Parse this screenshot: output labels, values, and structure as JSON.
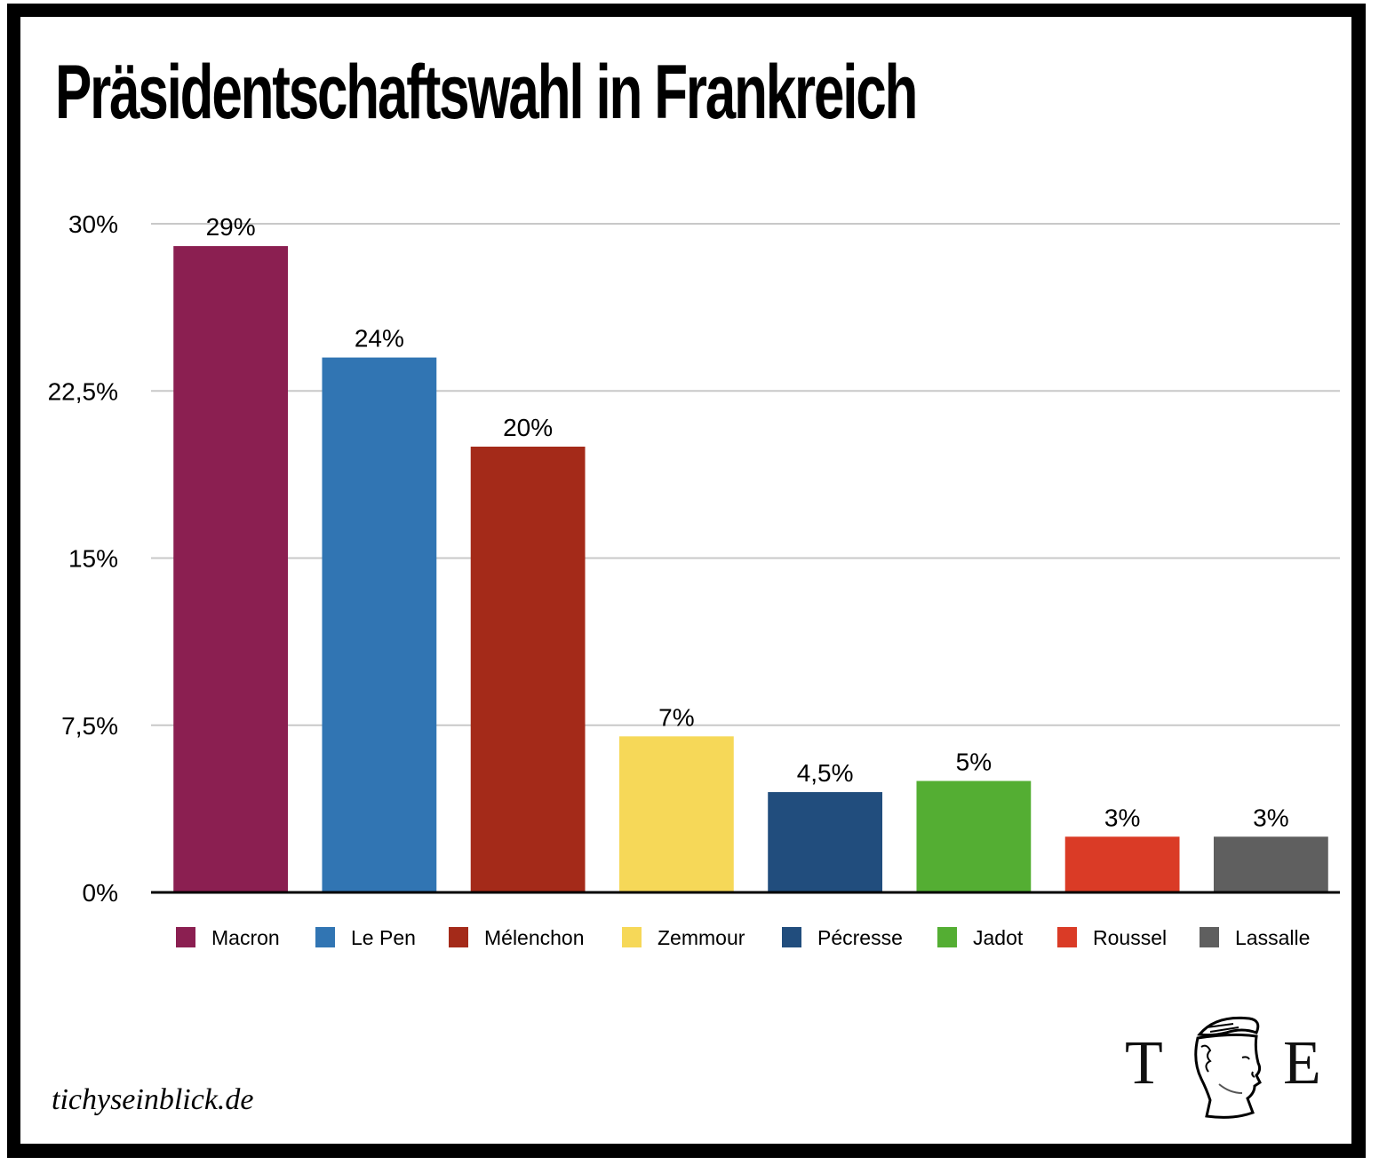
{
  "chart_data": {
    "type": "bar",
    "title": "Präsidentschaftswahl in Frankreich",
    "xlabel": "",
    "ylabel": "",
    "ylim": [
      0,
      30
    ],
    "yticks": [
      0,
      7.5,
      15,
      22.5,
      30
    ],
    "ytick_labels": [
      "0%",
      "7,5%",
      "15%",
      "22,5%",
      "30%"
    ],
    "grid": true,
    "legend_position": "bottom",
    "categories": [
      "Macron",
      "Le Pen",
      "Mélenchon",
      "Zemmour",
      "Pécresse",
      "Jadot",
      "Roussel",
      "Lassalle"
    ],
    "values": [
      29,
      24,
      20,
      7,
      4.5,
      5,
      2.5,
      2.5
    ],
    "data_labels": [
      "29%",
      "24%",
      "20%",
      "7%",
      "4,5%",
      "5%",
      "3%",
      "3%"
    ],
    "colors": [
      "#8B1F51",
      "#3175B3",
      "#A42A19",
      "#F6D858",
      "#214D7D",
      "#54AE33",
      "#DA3B26",
      "#5F5F5F"
    ]
  },
  "footer": {
    "site": "tichyseinblick.de",
    "logo_left": "T",
    "logo_right": "E"
  }
}
